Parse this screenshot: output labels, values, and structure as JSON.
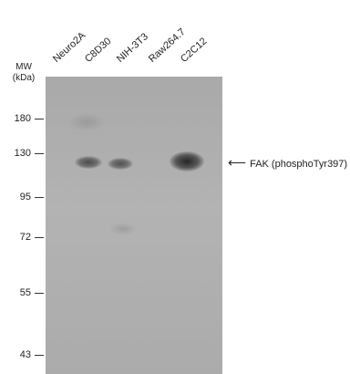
{
  "lanes": [
    "Neuro2A",
    "C8D30",
    "NIH-3T3",
    "Raw264.7",
    "C2C12"
  ],
  "mw_header": {
    "line1": "MW",
    "line2": "(kDa)"
  },
  "markers": [
    "180",
    "130",
    "95",
    "72",
    "55",
    "43"
  ],
  "target_label": "FAK (phosphoTyr397)",
  "arrow_glyph": "⟵",
  "bands": [
    {
      "lane": "C8D30",
      "intensity": 0.55
    },
    {
      "lane": "NIH-3T3",
      "intensity": 0.5
    },
    {
      "lane": "C2C12",
      "intensity": 1.0
    }
  ],
  "colors": {
    "membrane": "#ababab",
    "band": "#2a2a2a"
  }
}
